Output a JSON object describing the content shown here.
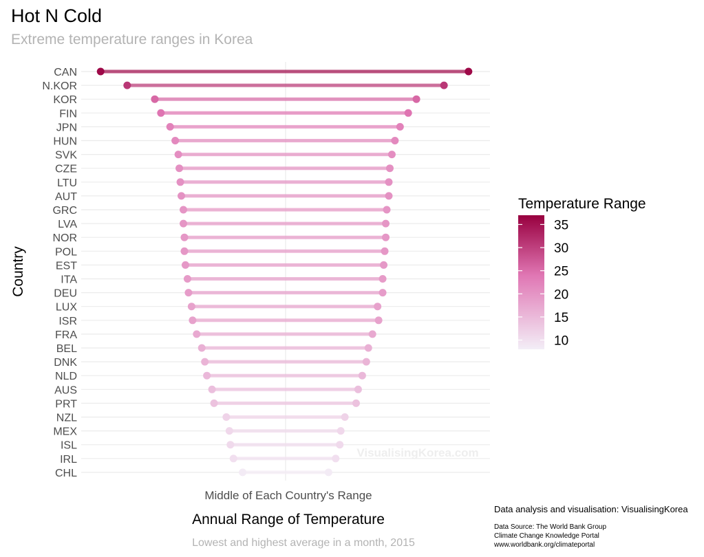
{
  "chart_data": {
    "type": "dumbbell",
    "title": "Hot N Cold",
    "subtitle": "Extreme temperature ranges in Korea",
    "xlabel": "Annual Range of Temperature",
    "x_center_label": "Middle of Each Country's Range",
    "ylabel": "Country",
    "caption": "Lowest and highest average in a month, 2015",
    "watermark": "VisualisingKorea.com",
    "legend": {
      "title": "Temperature Range",
      "position": "right",
      "ticks": [
        10,
        15,
        20,
        25,
        30,
        35
      ],
      "range": [
        8,
        37
      ],
      "color_low": "#f3eef7",
      "color_mid": "#e077b4",
      "color_high": "#98003f"
    },
    "x_range": [
      -20,
      20
    ],
    "grid": true,
    "countries": [
      {
        "country": "CAN",
        "low": -18.1,
        "high": 17.9,
        "range": 36.0
      },
      {
        "country": "N.KOR",
        "low": -15.5,
        "high": 15.5,
        "range": 31.0
      },
      {
        "country": "KOR",
        "low": -12.8,
        "high": 12.8,
        "range": 25.6
      },
      {
        "country": "FIN",
        "low": -12.2,
        "high": 12.0,
        "range": 24.2
      },
      {
        "country": "JPN",
        "low": -11.3,
        "high": 11.2,
        "range": 22.5
      },
      {
        "country": "HUN",
        "low": -10.8,
        "high": 10.7,
        "range": 21.5
      },
      {
        "country": "SVK",
        "low": -10.5,
        "high": 10.4,
        "range": 20.9
      },
      {
        "country": "CZE",
        "low": -10.4,
        "high": 10.2,
        "range": 20.6
      },
      {
        "country": "LTU",
        "low": -10.3,
        "high": 10.1,
        "range": 20.4
      },
      {
        "country": "AUT",
        "low": -10.2,
        "high": 10.1,
        "range": 20.3
      },
      {
        "country": "GRC",
        "low": -10.0,
        "high": 9.9,
        "range": 19.9
      },
      {
        "country": "LVA",
        "low": -10.0,
        "high": 9.8,
        "range": 19.8
      },
      {
        "country": "NOR",
        "low": -9.9,
        "high": 9.8,
        "range": 19.7
      },
      {
        "country": "POL",
        "low": -9.9,
        "high": 9.7,
        "range": 19.6
      },
      {
        "country": "EST",
        "low": -9.8,
        "high": 9.6,
        "range": 19.4
      },
      {
        "country": "ITA",
        "low": -9.6,
        "high": 9.5,
        "range": 19.1
      },
      {
        "country": "DEU",
        "low": -9.5,
        "high": 9.5,
        "range": 19.0
      },
      {
        "country": "LUX",
        "low": -9.2,
        "high": 9.0,
        "range": 18.2
      },
      {
        "country": "ISR",
        "low": -9.1,
        "high": 9.1,
        "range": 18.2
      },
      {
        "country": "FRA",
        "low": -8.7,
        "high": 8.5,
        "range": 17.2
      },
      {
        "country": "BEL",
        "low": -8.2,
        "high": 8.1,
        "range": 16.3
      },
      {
        "country": "DNK",
        "low": -7.9,
        "high": 7.9,
        "range": 15.8
      },
      {
        "country": "NLD",
        "low": -7.7,
        "high": 7.5,
        "range": 15.2
      },
      {
        "country": "AUS",
        "low": -7.2,
        "high": 7.1,
        "range": 14.3
      },
      {
        "country": "PRT",
        "low": -7.0,
        "high": 6.9,
        "range": 13.9
      },
      {
        "country": "NZL",
        "low": -5.8,
        "high": 5.8,
        "range": 11.6
      },
      {
        "country": "MEX",
        "low": -5.5,
        "high": 5.4,
        "range": 10.9
      },
      {
        "country": "ISL",
        "low": -5.4,
        "high": 5.3,
        "range": 10.7
      },
      {
        "country": "IRL",
        "low": -5.1,
        "high": 4.9,
        "range": 10.0
      },
      {
        "country": "CHL",
        "low": -4.2,
        "high": 4.2,
        "range": 8.4
      }
    ]
  },
  "footer": {
    "credit": "Data analysis and visualisation: VisualisingKorea",
    "source_lines": [
      "Data Source: The World Bank Group",
      "Climate Change Knowledge Portal",
      "www.worldbank.org/climateportal"
    ]
  }
}
